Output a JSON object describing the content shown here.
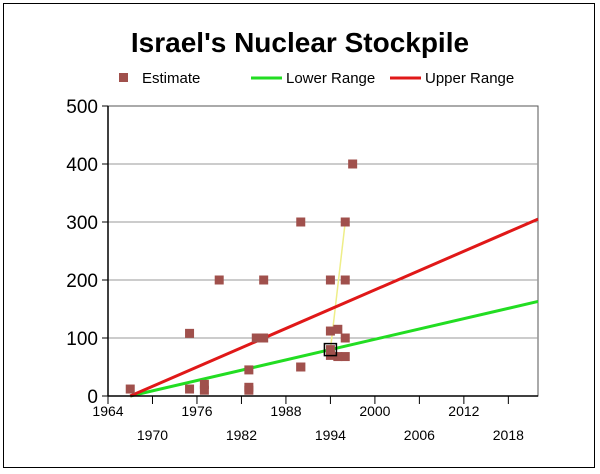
{
  "chart_data": {
    "type": "scatter",
    "title": "Israel's Nuclear Stockpile",
    "xlabel": "",
    "ylabel": "",
    "xlim": [
      1964,
      2022
    ],
    "ylim": [
      0,
      500
    ],
    "x_ticks_upper": [
      "1964",
      "1976",
      "1988",
      "2000",
      "2012"
    ],
    "x_ticks_lower": [
      "1970",
      "1982",
      "1994",
      "2006",
      "2018"
    ],
    "y_ticks": [
      "0",
      "100",
      "200",
      "300",
      "400",
      "500"
    ],
    "legend": [
      "Estimate",
      "Lower Range",
      "Upper Range"
    ],
    "colors": {
      "estimate": "#a0504c",
      "lower": "#22dd22",
      "upper": "#e01818",
      "highlight": "#eeee88",
      "grid": "#999999"
    },
    "series": [
      {
        "name": "Estimate",
        "type": "scatter",
        "points": [
          [
            1967,
            12
          ],
          [
            1975,
            108
          ],
          [
            1975,
            12
          ],
          [
            1977,
            20
          ],
          [
            1977,
            10
          ],
          [
            1979,
            200
          ],
          [
            1983,
            45
          ],
          [
            1983,
            15
          ],
          [
            1983,
            10
          ],
          [
            1984,
            100
          ],
          [
            1985,
            200
          ],
          [
            1985,
            100
          ],
          [
            1990,
            300
          ],
          [
            1990,
            50
          ],
          [
            1990,
            50
          ],
          [
            1994,
            200
          ],
          [
            1994,
            112
          ],
          [
            1994,
            80
          ],
          [
            1994,
            70
          ],
          [
            1995,
            68
          ],
          [
            1995,
            115
          ],
          [
            1996,
            300
          ],
          [
            1996,
            200
          ],
          [
            1996,
            100
          ],
          [
            1996,
            68
          ],
          [
            1997,
            400
          ]
        ]
      },
      {
        "name": "Lower Range",
        "type": "line",
        "x": [
          1967,
          2022
        ],
        "values": [
          0,
          163
        ]
      },
      {
        "name": "Upper Range",
        "type": "line",
        "x": [
          1967,
          2022
        ],
        "values": [
          0,
          305
        ]
      }
    ],
    "highlight_points": [
      [
        1994,
        80
      ]
    ],
    "highlight_line": {
      "x": [
        1994,
        1996
      ],
      "values": [
        80,
        300
      ]
    }
  }
}
